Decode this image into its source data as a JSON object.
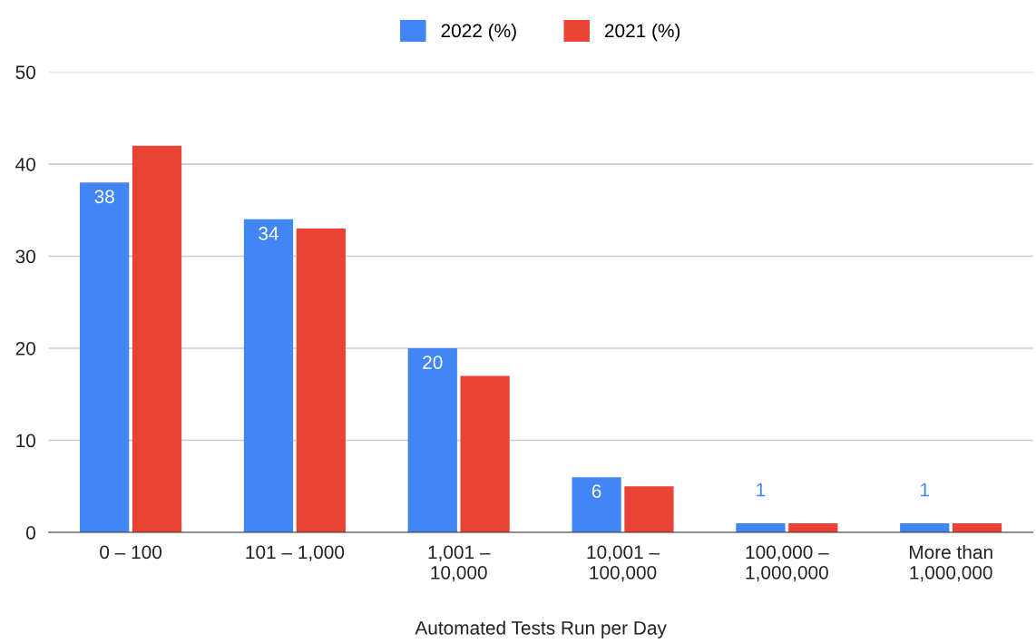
{
  "chart_data": {
    "type": "bar",
    "xlabel": "Automated Tests Run per Day",
    "categories": [
      "0 – 100",
      "101 – 1,000",
      "1,001 –\n10,000",
      "10,001 –\n100,000",
      "100,000 –\n1,000,000",
      "More than\n1,000,000"
    ],
    "series": [
      {
        "name": "2022 (%)",
        "color": "#4285f4",
        "values": [
          38,
          34,
          20,
          6,
          1,
          1
        ],
        "value_labels": [
          "38",
          "34",
          "20",
          "6",
          "1",
          "1"
        ]
      },
      {
        "name": "2021 (%)",
        "color": "#ea4335",
        "values": [
          42,
          33,
          17,
          5,
          1,
          1
        ]
      }
    ],
    "ylim": [
      0,
      50
    ],
    "yticks": [
      0,
      10,
      20,
      30,
      40,
      50
    ],
    "grid": "y",
    "legend": "top"
  }
}
